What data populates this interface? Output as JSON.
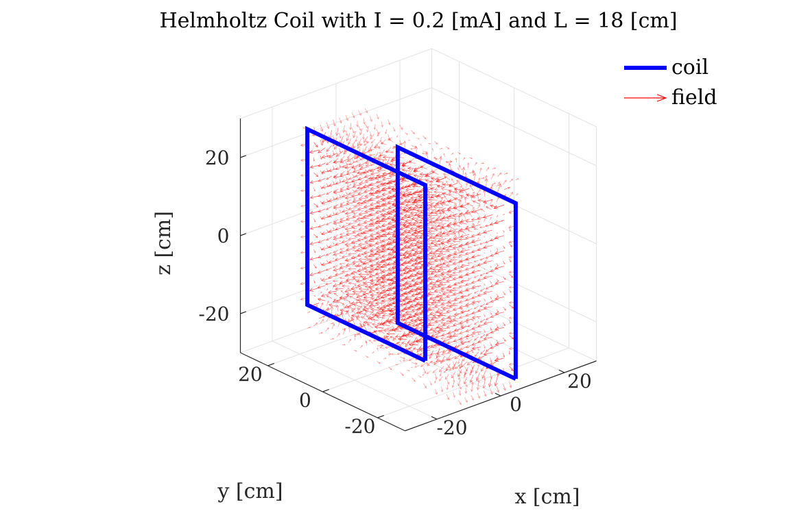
{
  "chart_data": {
    "type": "quiver3d",
    "title": "Helmholtz Coil with I = 0.2 [mA] and L = 18 [cm]",
    "xlabel": "x [cm]",
    "ylabel": "y [cm]",
    "zlabel": "z [cm]",
    "xlim": [
      -30,
      30
    ],
    "ylim": [
      -30,
      30
    ],
    "zlim": [
      -30,
      30
    ],
    "xticks": [
      {
        "value": -20,
        "label": "-20"
      },
      {
        "value": 0,
        "label": "0"
      },
      {
        "value": 20,
        "label": "20"
      }
    ],
    "yticks": [
      {
        "value": -20,
        "label": "-20"
      },
      {
        "value": 0,
        "label": "0"
      },
      {
        "value": 20,
        "label": "20"
      }
    ],
    "zticks": [
      {
        "value": -20,
        "label": "-20"
      },
      {
        "value": 0,
        "label": "0"
      },
      {
        "value": 20,
        "label": "20"
      }
    ],
    "grid": true,
    "legend_position": "top-right",
    "series": [
      {
        "name": "coil",
        "kind": "line",
        "color": "#0000ff",
        "loops": [
          [
            [
              -9,
              -13,
              -24
            ],
            [
              -9,
              -13,
              21
            ],
            [
              -9,
              30,
              21
            ],
            [
              -9,
              30,
              -24
            ],
            [
              -9,
              -13,
              -24
            ]
          ],
          [
            [
              9,
              -25,
              -30
            ],
            [
              9,
              -25,
              15
            ],
            [
              9,
              18,
              15
            ],
            [
              9,
              18,
              -30
            ],
            [
              9,
              -25,
              -30
            ]
          ]
        ]
      },
      {
        "name": "field",
        "kind": "quiver",
        "color": "#ff0000",
        "field_grid": {
          "x": [
            -9,
            9
          ],
          "y": [
            -25,
            30
          ],
          "z": [
            -30,
            21
          ]
        }
      }
    ]
  }
}
